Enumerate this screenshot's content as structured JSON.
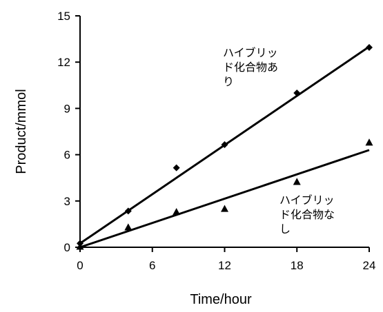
{
  "chart_data": {
    "type": "scatter",
    "xlabel": "Time/hour",
    "ylabel": "Product/mmol",
    "xlim": [
      0,
      24
    ],
    "ylim": [
      0,
      15
    ],
    "xticks": [
      "0",
      "6",
      "12",
      "18",
      "24"
    ],
    "yticks": [
      "0",
      "3",
      "6",
      "9",
      "12",
      "15"
    ],
    "grid": false,
    "series": [
      {
        "name": "ハイブリッド化合物あり",
        "marker": "diamond",
        "color": "#000000",
        "points": [
          {
            "x": 0,
            "y": 0.25
          },
          {
            "x": 4,
            "y": 2.35
          },
          {
            "x": 8,
            "y": 5.15
          },
          {
            "x": 12,
            "y": 6.65
          },
          {
            "x": 18,
            "y": 10.0
          },
          {
            "x": 24,
            "y": 12.95
          }
        ],
        "trendline": {
          "x0": 0,
          "y0": 0.25,
          "x1": 24,
          "y1": 13.0
        }
      },
      {
        "name": "ハイブリッド化合物なし",
        "marker": "triangle",
        "color": "#000000",
        "points": [
          {
            "x": 0,
            "y": 0.05
          },
          {
            "x": 4,
            "y": 1.3
          },
          {
            "x": 8,
            "y": 2.3
          },
          {
            "x": 12,
            "y": 2.5
          },
          {
            "x": 18,
            "y": 4.25
          },
          {
            "x": 24,
            "y": 6.8
          }
        ],
        "trendline": {
          "x0": 0,
          "y0": 0.0,
          "x1": 24,
          "y1": 6.3
        }
      }
    ],
    "annotations": [
      {
        "lines": [
          "ハイブリッ",
          "ド化合物あ",
          "り"
        ]
      },
      {
        "lines": [
          "ハイブリッ",
          "ド化合物な",
          "し"
        ]
      }
    ]
  }
}
